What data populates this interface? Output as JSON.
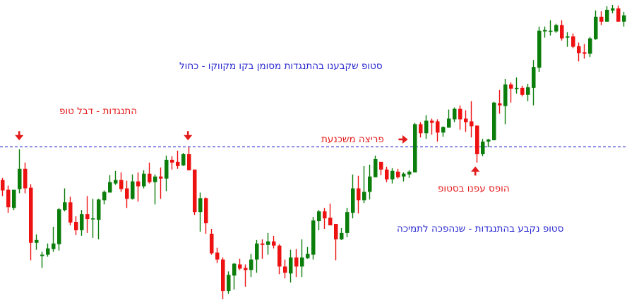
{
  "chart_data": {
    "type": "candlestick",
    "title": "",
    "xlabel": "",
    "ylabel": "",
    "axes_shown": false,
    "grid": false,
    "ylim": [
      4,
      430
    ],
    "colors": {
      "up": "#0b7d0b",
      "down": "#ee1111",
      "level_line": "#1a1acc"
    },
    "resistance_level": 224,
    "ohlc": [
      [
        176,
        179,
        153,
        161
      ],
      [
        162,
        168,
        129,
        137
      ],
      [
        136,
        162,
        133,
        162
      ],
      [
        163,
        220,
        157,
        192
      ],
      [
        192,
        201,
        157,
        164
      ],
      [
        165,
        170,
        61,
        86
      ],
      [
        86,
        98,
        76,
        90
      ],
      [
        67,
        73,
        50,
        69
      ],
      [
        69,
        85,
        66,
        78
      ],
      [
        77,
        109,
        73,
        85
      ],
      [
        84,
        136,
        75,
        134
      ],
      [
        133,
        164,
        131,
        144
      ],
      [
        144,
        152,
        111,
        115
      ],
      [
        116,
        124,
        97,
        104
      ],
      [
        104,
        133,
        96,
        127
      ],
      [
        127,
        153,
        100,
        120
      ],
      [
        120,
        149,
        93,
        121
      ],
      [
        119,
        149,
        91,
        148
      ],
      [
        147,
        161,
        141,
        159
      ],
      [
        158,
        183,
        158,
        173
      ],
      [
        171,
        189,
        169,
        176
      ],
      [
        176,
        187,
        159,
        163
      ],
      [
        164,
        175,
        136,
        149
      ],
      [
        149,
        184,
        148,
        174
      ],
      [
        174,
        187,
        145,
        167
      ],
      [
        167,
        190,
        164,
        185
      ],
      [
        185,
        201,
        171,
        173
      ],
      [
        173,
        184,
        141,
        181
      ],
      [
        181,
        194,
        149,
        178
      ],
      [
        178,
        211,
        160,
        205
      ],
      [
        205,
        210,
        191,
        201
      ],
      [
        202,
        218,
        192,
        196
      ],
      [
        197,
        215,
        196,
        213
      ],
      [
        213,
        223,
        190,
        190
      ],
      [
        191,
        191,
        126,
        130
      ],
      [
        130,
        158,
        102,
        150
      ],
      [
        150,
        151,
        99,
        114
      ],
      [
        99,
        106,
        69,
        71
      ],
      [
        72,
        79,
        57,
        62
      ],
      [
        62,
        65,
        5,
        17
      ],
      [
        17,
        45,
        13,
        40
      ],
      [
        39,
        57,
        19,
        56
      ],
      [
        55,
        63,
        47,
        49
      ],
      [
        50,
        55,
        23,
        47
      ],
      [
        47,
        70,
        37,
        62
      ],
      [
        62,
        90,
        43,
        85
      ],
      [
        85,
        91,
        63,
        83
      ],
      [
        83,
        100,
        69,
        88
      ],
      [
        88,
        96,
        78,
        82
      ],
      [
        82,
        84,
        41,
        52
      ],
      [
        52,
        62,
        35,
        43
      ],
      [
        42,
        76,
        29,
        65
      ],
      [
        65,
        77,
        37,
        52
      ],
      [
        52,
        91,
        37,
        65
      ],
      [
        64,
        80,
        63,
        70
      ],
      [
        69,
        123,
        62,
        118
      ],
      [
        117,
        133,
        104,
        131
      ],
      [
        131,
        136,
        106,
        121
      ],
      [
        122,
        142,
        111,
        111
      ],
      [
        113,
        113,
        61,
        91
      ],
      [
        91,
        107,
        90,
        100
      ],
      [
        100,
        136,
        94,
        130
      ],
      [
        129,
        184,
        121,
        164
      ],
      [
        164,
        182,
        128,
        147
      ],
      [
        147,
        196,
        143,
        159
      ],
      [
        159,
        198,
        148,
        181
      ],
      [
        180,
        211,
        180,
        206
      ],
      [
        202,
        202,
        183,
        191
      ],
      [
        191,
        195,
        173,
        177
      ],
      [
        177,
        193,
        171,
        189
      ],
      [
        188,
        192,
        178,
        180
      ],
      [
        181,
        187,
        174,
        185
      ],
      [
        184,
        190,
        179,
        188
      ],
      [
        187,
        258,
        187,
        256
      ],
      [
        256,
        259,
        237,
        243
      ],
      [
        243,
        269,
        235,
        261
      ],
      [
        261,
        264,
        241,
        258
      ],
      [
        260,
        263,
        231,
        244
      ],
      [
        244,
        253,
        238,
        252
      ],
      [
        251,
        277,
        251,
        264
      ],
      [
        263,
        280,
        259,
        278
      ],
      [
        278,
        283,
        248,
        263
      ],
      [
        264,
        276,
        245,
        259
      ],
      [
        260,
        289,
        237,
        253
      ],
      [
        254,
        254,
        201,
        213
      ],
      [
        213,
        235,
        210,
        231
      ],
      [
        231,
        235,
        223,
        234
      ],
      [
        233,
        288,
        233,
        287
      ],
      [
        286,
        305,
        271,
        283
      ],
      [
        282,
        321,
        256,
        313
      ],
      [
        313,
        316,
        287,
        307
      ],
      [
        307,
        323,
        300,
        308
      ],
      [
        308,
        311,
        296,
        298
      ],
      [
        298,
        314,
        289,
        309
      ],
      [
        308,
        348,
        283,
        338
      ],
      [
        337,
        396,
        331,
        390
      ],
      [
        389,
        396,
        380,
        391
      ],
      [
        389,
        405,
        383,
        390
      ],
      [
        389,
        400,
        387,
        398
      ],
      [
        398,
        405,
        376,
        379
      ],
      [
        380,
        388,
        367,
        382
      ],
      [
        382,
        386,
        365,
        367
      ],
      [
        368,
        373,
        346,
        358
      ],
      [
        359,
        371,
        350,
        357
      ],
      [
        357,
        381,
        352,
        379
      ],
      [
        378,
        419,
        377,
        410
      ],
      [
        410,
        418,
        398,
        403
      ],
      [
        403,
        425,
        403,
        420
      ],
      [
        419,
        427,
        415,
        422
      ],
      [
        422,
        426,
        403,
        403
      ],
      [
        403,
        417,
        396,
        412
      ]
    ],
    "annotations": {
      "resistance_label": "התנגדות - דבל טופ",
      "stop_line_label": "סטופ שקבענו בהתנגדות מסומן בקו מקווקו - כחול",
      "breakout_label": "פריצה משכנעת",
      "stopped_out_label": "הופס עפנו בסטופ",
      "role_reversal_label": "סטופ נקבע בהתנגדות - שנהפכה לתמיכה"
    },
    "annotation_colors": {
      "red": "#e31b1b",
      "blue": "#2a2ad0"
    }
  }
}
